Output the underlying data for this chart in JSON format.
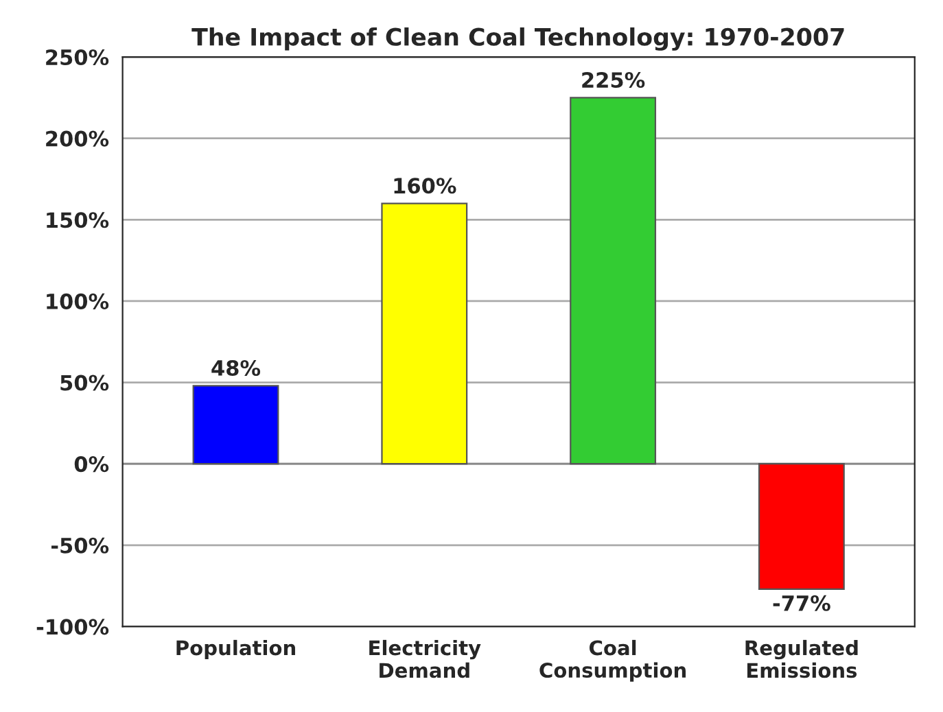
{
  "chart_data": {
    "type": "bar",
    "title": "The Impact of Clean Coal Technology: 1970-2007",
    "categories": [
      "Population",
      "Electricity\nDemand",
      "Coal\nConsumption",
      "Regulated\nEmissions"
    ],
    "values": [
      48,
      160,
      225,
      -77
    ],
    "colors": [
      "#0000ff",
      "#ffff00",
      "#33cc33",
      "#ff0000"
    ],
    "value_labels": [
      "48%",
      "160%",
      "225%",
      "-77%"
    ],
    "ylim": [
      -100,
      250
    ],
    "yticks": [
      {
        "value": -100,
        "label": "-100%"
      },
      {
        "value": -50,
        "label": "-50%"
      },
      {
        "value": 0,
        "label": "0%"
      },
      {
        "value": 50,
        "label": "50%"
      },
      {
        "value": 100,
        "label": "100%"
      },
      {
        "value": 150,
        "label": "150%"
      },
      {
        "value": 200,
        "label": "200%"
      },
      {
        "value": 250,
        "label": "250%"
      }
    ],
    "grid": "y"
  }
}
